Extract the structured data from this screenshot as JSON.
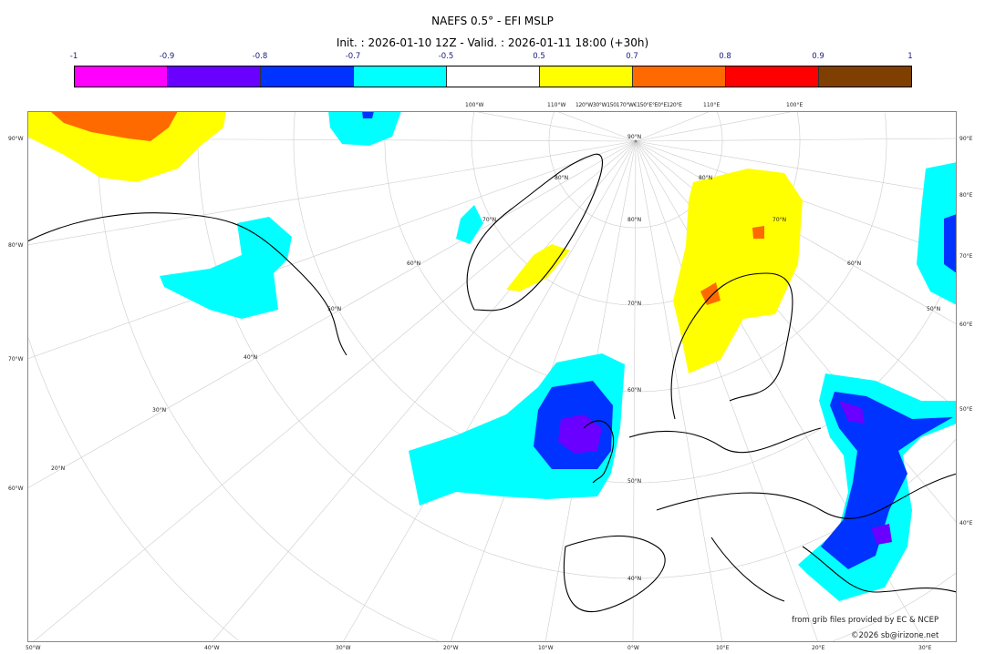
{
  "title": "NAEFS 0.5° - EFI MSLP",
  "subtitle": "Init. : 2026-01-10 12Z - Valid. : 2026-01-11 18:00 (+30h)",
  "colorbar": {
    "ticks": [
      "-1",
      "-0.9",
      "-0.8",
      "-0.7",
      "-0.5",
      "0.5",
      "0.7",
      "0.8",
      "0.9",
      "1"
    ],
    "colors": [
      "#ff00ff",
      "#6a00ff",
      "#0033ff",
      "#00ffff",
      "#ffffff",
      "#ffff00",
      "#ff6a00",
      "#ff0000",
      "#7f3f00"
    ]
  },
  "map": {
    "left_labels": [
      "90°W",
      "80°W",
      "70°W",
      "60°W"
    ],
    "right_labels": [
      "90°E",
      "80°E",
      "70°E",
      "60°E",
      "50°E",
      "40°E"
    ],
    "bottom_labels": [
      "50°W",
      "40°W",
      "30°W",
      "20°W",
      "10°W",
      "0°W",
      "10°E",
      "20°E",
      "30°E"
    ],
    "top_labels": [
      "100°W",
      "110°W",
      "120°W30°W150170°W€150°E°E0°E120°E",
      "110°E",
      "100°E"
    ],
    "lat_labels": [
      "90°N",
      "80°N",
      "70°N",
      "60°N",
      "50°N",
      "40°N",
      "30°N",
      "20°N",
      "80°N",
      "70°N",
      "60°N",
      "50°N",
      "80°N",
      "70°N",
      "60°N",
      "50°N",
      "40°N"
    ]
  },
  "credits": {
    "source": "from grib files provided by EC & NCEP",
    "copyright": "©2026 sb@irizone.net"
  }
}
